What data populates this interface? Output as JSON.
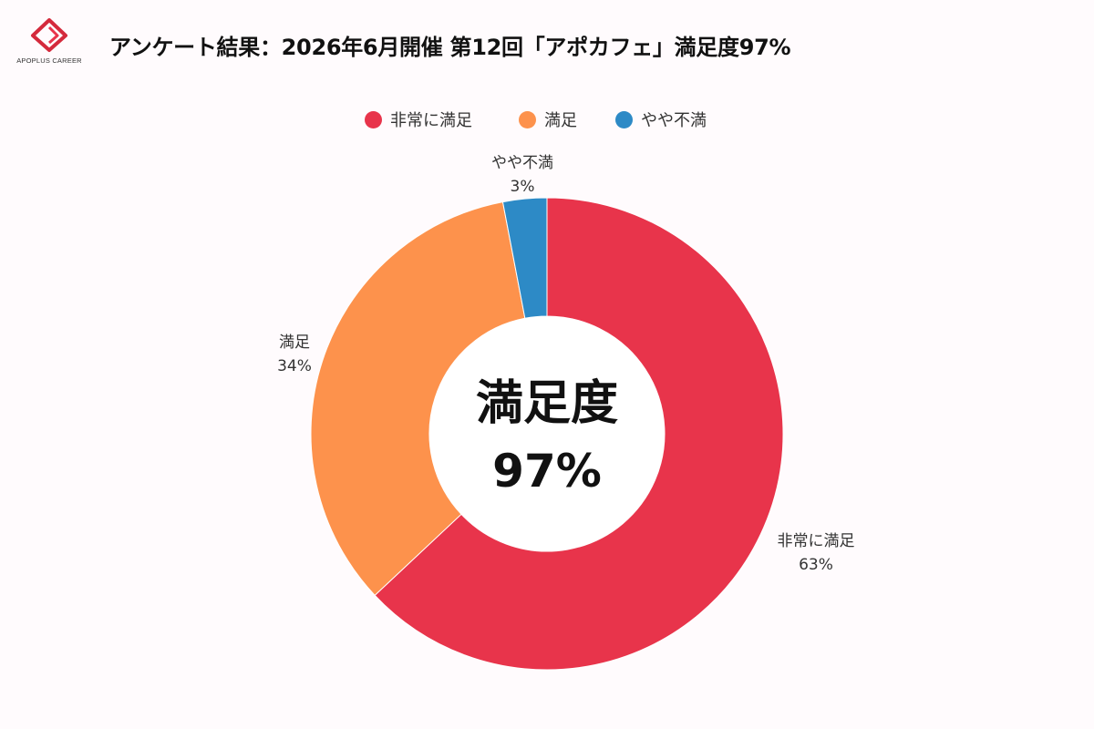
{
  "header": {
    "logo_text": "APOPLUS CAREER",
    "title": "アンケート結果：2026年6月開催 第12回「アポカフェ」満足度97%"
  },
  "chart_data": {
    "type": "pie",
    "variant": "donut",
    "title": "アンケート結果：2026年6月開催 第12回「アポカフェ」満足度97%",
    "categories": [
      "非常に満足",
      "満足",
      "やや不満"
    ],
    "values": [
      63,
      34,
      3
    ],
    "unit": "%",
    "colors": [
      "#e8344b",
      "#fd924c",
      "#2d8ac6"
    ],
    "legend_position": "top",
    "center_label": "満足度",
    "center_value": "97%"
  },
  "slices": [
    {
      "name": "非常に満足",
      "percent_label": "63%"
    },
    {
      "name": "満足",
      "percent_label": "34%"
    },
    {
      "name": "やや不満",
      "percent_label": "3%"
    }
  ]
}
